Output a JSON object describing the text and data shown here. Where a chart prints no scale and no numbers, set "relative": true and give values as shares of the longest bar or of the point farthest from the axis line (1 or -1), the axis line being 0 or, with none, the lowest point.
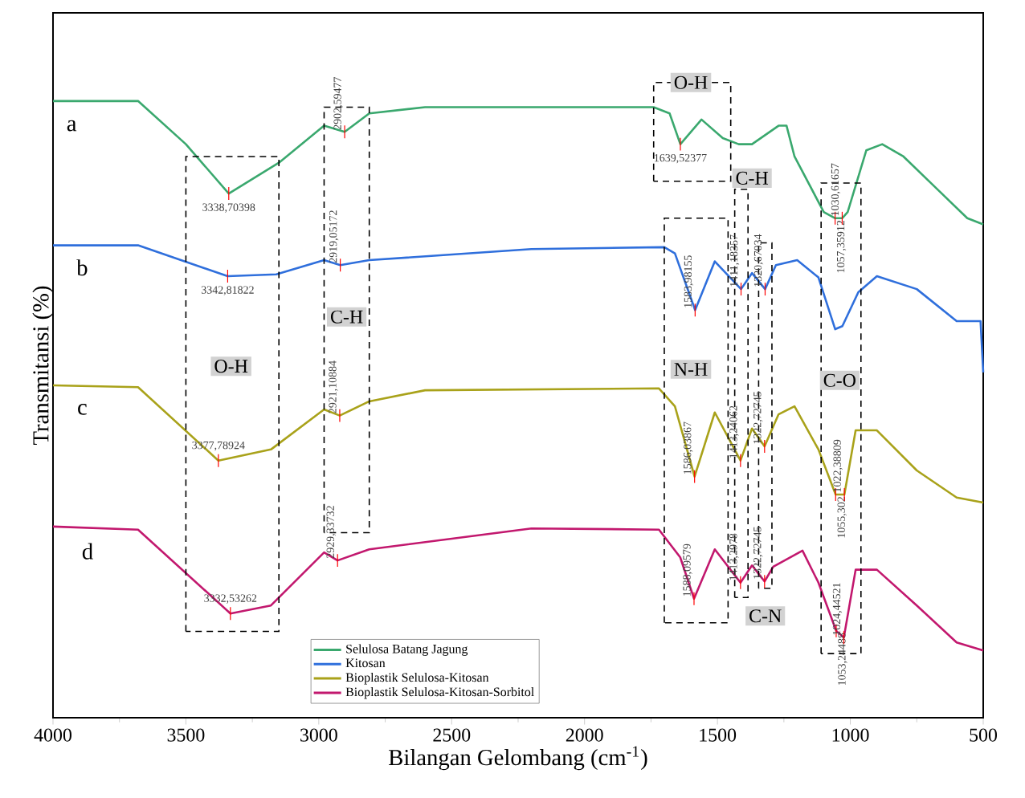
{
  "chart_data": {
    "type": "line",
    "relative": true,
    "xlabel": "Bilangan Gelombang (cm$^{-1}$)",
    "ylabel": "Transmitansi (%)",
    "xlim": [
      4000,
      500
    ],
    "xticks": [
      4000,
      3500,
      3000,
      2500,
      2000,
      1500,
      1000,
      500
    ],
    "grid": false,
    "legend": "bottom",
    "line_style": "solid",
    "series": [
      {
        "name": "Selulosa Batang Jagung",
        "color": "#3aa86e",
        "x": [
          4000,
          3680,
          3500,
          3338.70398,
          3150,
          2980,
          2902.59477,
          2810,
          2600,
          2200,
          2065,
          1740,
          1680,
          1639.52377,
          1560,
          1480,
          1420,
          1370,
          1270,
          1240,
          1210,
          1100,
          1057.35912,
          1030.61657,
          1010,
          940,
          880,
          800,
          680,
          560,
          500
        ],
        "values": [
          1.0,
          1.0,
          0.93,
          0.85,
          0.9,
          0.96,
          0.95,
          0.98,
          0.99,
          0.99,
          0.99,
          0.99,
          0.98,
          0.93,
          0.97,
          0.94,
          0.93,
          0.93,
          0.96,
          0.96,
          0.91,
          0.82,
          0.81,
          0.81,
          0.82,
          0.92,
          0.93,
          0.91,
          0.86,
          0.81,
          0.8
        ]
      },
      {
        "name": "Kitosan",
        "color": "#2f6fdc",
        "x": [
          4000,
          3680,
          3342.81822,
          3160,
          2980,
          2919.05172,
          2810,
          2200,
          1700,
          1660,
          1583.98155,
          1510,
          1411.18357,
          1370,
          1320.67034,
          1280,
          1200,
          1120,
          1057,
          1030,
          970,
          900,
          750,
          600,
          510,
          500
        ],
        "values": [
          0.766,
          0.766,
          0.716,
          0.719,
          0.742,
          0.734,
          0.742,
          0.76,
          0.763,
          0.753,
          0.661,
          0.74,
          0.695,
          0.721,
          0.695,
          0.734,
          0.742,
          0.714,
          0.63,
          0.635,
          0.69,
          0.716,
          0.695,
          0.643,
          0.643,
          0.56
        ]
      },
      {
        "name": "Bioplastik Selulosa-Kitosan",
        "color": "#a9a21a",
        "x": [
          4000,
          3680,
          3377.78924,
          3180,
          2980,
          2921.10884,
          2810,
          2600,
          1720,
          1660,
          1586.03867,
          1510,
          1413.24062,
          1370,
          1322.72745,
          1270,
          1210,
          1120,
          1055.302,
          1022.38809,
          980,
          900,
          750,
          600,
          500
        ],
        "values": [
          0.539,
          0.536,
          0.417,
          0.435,
          0.5,
          0.49,
          0.513,
          0.531,
          0.534,
          0.505,
          0.391,
          0.495,
          0.417,
          0.469,
          0.44,
          0.492,
          0.505,
          0.435,
          0.362,
          0.362,
          0.466,
          0.466,
          0.401,
          0.357,
          0.349
        ]
      },
      {
        "name": "Bioplastik Selulosa-Kitosan-Sorbitol",
        "color": "#c2186e",
        "x": [
          4000,
          3680,
          3332.53262,
          3180,
          2980,
          2929.33732,
          2810,
          2200,
          1720,
          1640,
          1588.09579,
          1510,
          1413.2978,
          1370,
          1322.72745,
          1290,
          1180,
          1120,
          1053.24488,
          1024.44521,
          980,
          900,
          750,
          600,
          500
        ],
        "values": [
          0.31,
          0.305,
          0.169,
          0.182,
          0.268,
          0.255,
          0.273,
          0.307,
          0.305,
          0.26,
          0.193,
          0.273,
          0.219,
          0.247,
          0.221,
          0.245,
          0.271,
          0.219,
          0.141,
          0.13,
          0.24,
          0.24,
          0.182,
          0.122,
          0.109
        ]
      }
    ],
    "annotations": [
      "a",
      "b",
      "c",
      "d",
      "O-H",
      "C-H",
      "O-H",
      "C-H",
      "N-H",
      "C-N",
      "C-O",
      {
        "text": "3338,70398",
        "x": 3338.70398,
        "y": 0.85
      },
      {
        "text": "2902,59477",
        "x": 2902.59477,
        "y": 0.95
      },
      {
        "text": "1639,52377",
        "x": 1639.52377,
        "y": 0.93
      },
      {
        "text": "1057,35912",
        "x": 1057.35912,
        "y": 0.81
      },
      {
        "text": "1030,61657",
        "x": 1030.61657,
        "y": 0.81
      },
      {
        "text": "3342,81822",
        "x": 3342.81822,
        "y": 0.716
      },
      {
        "text": "2919,05172",
        "x": 2919.05172,
        "y": 0.734
      },
      {
        "text": "1583,98155",
        "x": 1583.98155,
        "y": 0.661
      },
      {
        "text": "1411,18357",
        "x": 1411.18357,
        "y": 0.695
      },
      {
        "text": "1320,67034",
        "x": 1320.67034,
        "y": 0.695
      },
      {
        "text": "3377,78924",
        "x": 3377.78924,
        "y": 0.417
      },
      {
        "text": "2921,10884",
        "x": 2921.10884,
        "y": 0.49
      },
      {
        "text": "1586,03867",
        "x": 1586.03867,
        "y": 0.391
      },
      {
        "text": "1413,24062",
        "x": 1413.24062,
        "y": 0.417
      },
      {
        "text": "1322,72745",
        "x": 1322.72745,
        "y": 0.44
      },
      {
        "text": "1055,302",
        "x": 1055.302,
        "y": 0.362
      },
      {
        "text": "1022,38809",
        "x": 1022.38809,
        "y": 0.362
      },
      {
        "text": "3332,53262",
        "x": 3332.53262,
        "y": 0.169
      },
      {
        "text": "2929,33732",
        "x": 2929.33732,
        "y": 0.255
      },
      {
        "text": "1588,09579",
        "x": 1588.09579,
        "y": 0.193
      },
      {
        "text": "1413,2978",
        "x": 1413.2978,
        "y": 0.219
      },
      {
        "text": "1322,72745",
        "x": 1322.72745,
        "y": 0.221
      },
      {
        "text": "1053,24488",
        "x": 1053.24488,
        "y": 0.141
      },
      {
        "text": "1024,44521",
        "x": 1024.44521,
        "y": 0.13
      }
    ]
  }
}
